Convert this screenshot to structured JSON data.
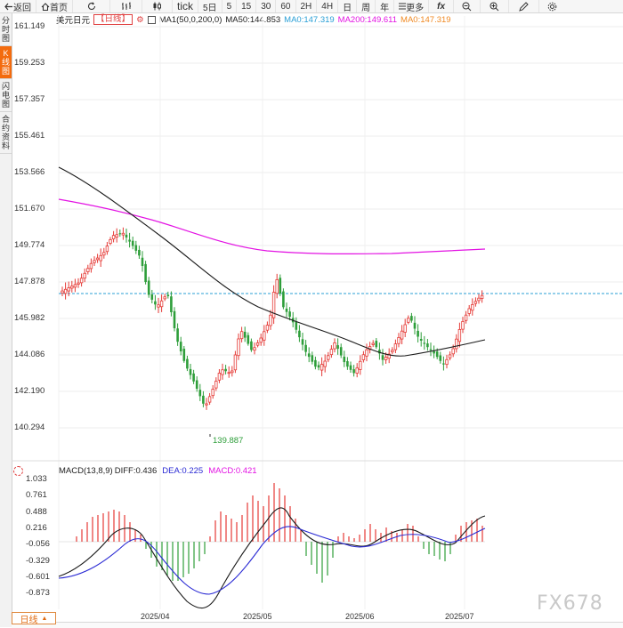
{
  "toolbar": {
    "back": "返回",
    "home": "首页",
    "tick": "tick",
    "periods": [
      "5日",
      "5",
      "15",
      "30",
      "60",
      "2H",
      "4H",
      "日",
      "周",
      "年"
    ],
    "more": "更多",
    "fx": "fx"
  },
  "sidebar": {
    "tabs": [
      {
        "label": "分时图",
        "active": false
      },
      {
        "label": "K线图",
        "active": true
      },
      {
        "label": "闪电图",
        "active": false
      },
      {
        "label": "合约资料",
        "active": false
      }
    ]
  },
  "legend": {
    "symbol": "美元日元",
    "period": "日线",
    "ma1": "MA1(50,0,200,0)",
    "ma50": "MA50:144.853",
    "ma0_a": "MA0:147.319",
    "ma200": "MA200:149.611",
    "ma0_b": "MA0:147.319"
  },
  "colors": {
    "up": "#e53935",
    "down": "#2e9e3a",
    "ma50": "#1a1a1a",
    "ma200": "#e313e3",
    "macd_line": "#1a1a1a",
    "dea_line": "#2a2ad4",
    "accent": "#f36b0e"
  },
  "price_axis": {
    "labels": [
      "161.149",
      "159.253",
      "157.357",
      "155.461",
      "153.566",
      "151.670",
      "149.774",
      "147.878",
      "145.982",
      "144.086",
      "142.190",
      "140.294"
    ]
  },
  "low_label": "139.887",
  "macd": {
    "title": "MACD(13,8,9)",
    "diff": "DIFF:0.436",
    "dea": "DEA:0.225",
    "macd": "MACD:0.421",
    "axis": [
      "1.033",
      "0.761",
      "0.488",
      "0.216",
      "-0.056",
      "-0.329",
      "-0.601",
      "-0.873"
    ]
  },
  "dates": [
    "2025/04",
    "2025/05",
    "2025/06",
    "2025/07"
  ],
  "bottom_tab": "日线",
  "watermark": "FX678"
}
